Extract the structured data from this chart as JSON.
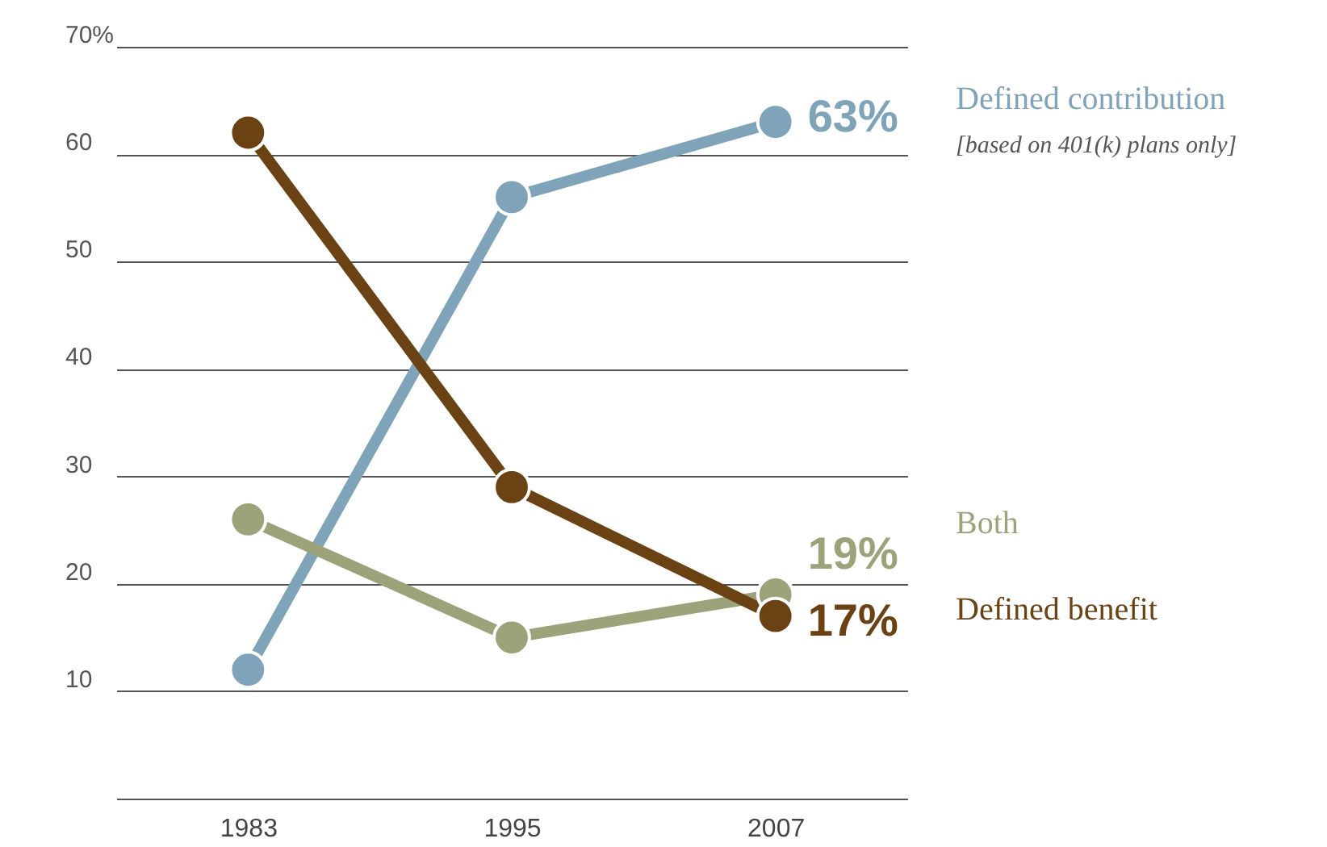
{
  "chart_data": {
    "type": "line",
    "categories": [
      "1983",
      "1995",
      "2007"
    ],
    "series": [
      {
        "name": "Defined contribution",
        "color": "#7fa3b8",
        "values": [
          12,
          56,
          63
        ],
        "value_labels": [
          null,
          null,
          "63%"
        ]
      },
      {
        "name": "Both",
        "color": "#9ca37a",
        "values": [
          26,
          15,
          19
        ],
        "value_labels": [
          null,
          null,
          "19%"
        ]
      },
      {
        "name": "Defined benefit",
        "color": "#6b4213",
        "values": [
          62,
          29,
          17
        ],
        "value_labels": [
          null,
          null,
          "17%"
        ]
      }
    ],
    "annotations": [
      "[based on 401(k) plans only]"
    ],
    "ylim": [
      0,
      70
    ],
    "yticks": [
      {
        "value": 0,
        "label": null
      },
      10,
      20,
      30,
      40,
      50,
      60,
      {
        "value": 70,
        "label": "70%"
      }
    ],
    "grid": "y",
    "marker": "circle",
    "line_style": "solid",
    "legend": "right"
  }
}
